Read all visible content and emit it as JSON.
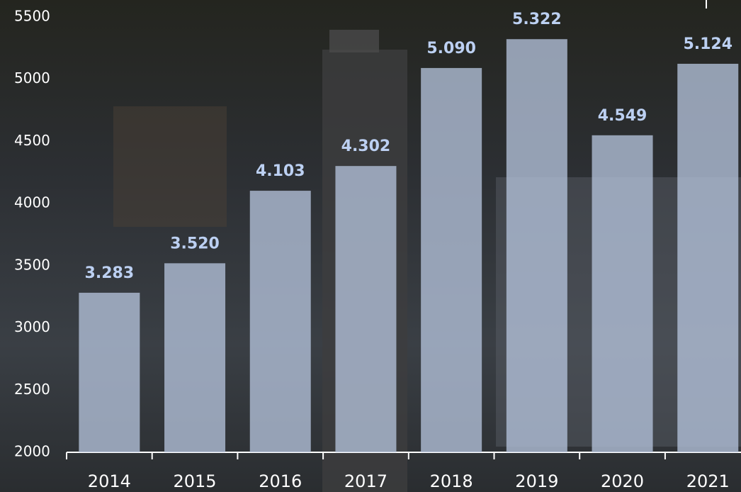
{
  "chart_data": {
    "type": "bar",
    "categories": [
      "2014",
      "2015",
      "2016",
      "2017",
      "2018",
      "2019",
      "2020",
      "2021"
    ],
    "values": [
      3283,
      3520,
      4103,
      4302,
      5090,
      5322,
      4549,
      5124
    ],
    "value_labels": [
      "3.283",
      "3.520",
      "4.103",
      "4.302",
      "5.090",
      "5.322",
      "4.549",
      "5.124"
    ],
    "color": "#b4c2da",
    "ylim": [
      2000,
      5500
    ],
    "yticks": [
      2000,
      2500,
      3000,
      3500,
      4000,
      4500,
      5000,
      5500
    ],
    "grid": false
  }
}
